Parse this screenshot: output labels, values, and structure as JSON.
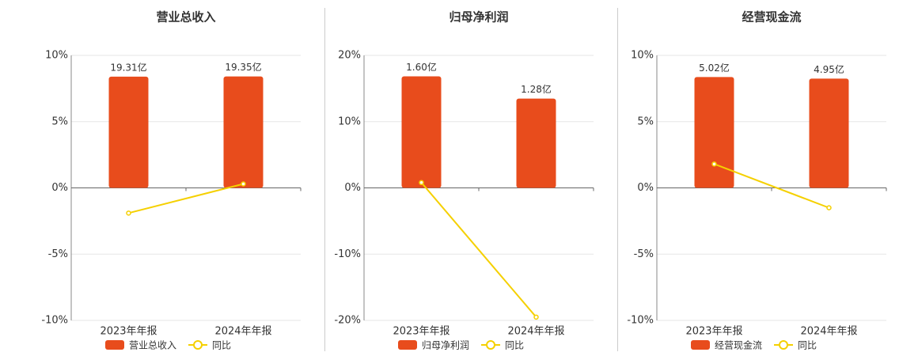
{
  "chart_data": [
    {
      "type": "bar",
      "title": "营业总收入",
      "categories": [
        "2023年年报",
        "2024年年报"
      ],
      "series": [
        {
          "name": "营业总收入",
          "color": "#e84c1c",
          "axis": "y2",
          "values": [
            19.31,
            19.35
          ],
          "value_labels": [
            "19.31亿",
            "19.35亿"
          ]
        },
        {
          "name": "同比",
          "color": "#f5d000",
          "type": "line",
          "values": [
            -1.9,
            0.3
          ]
        }
      ],
      "ylim": [
        -10,
        10
      ],
      "yticks": [
        {
          "value": -10,
          "label": "-10%"
        },
        {
          "value": -5,
          "label": "-5%"
        },
        {
          "value": 0,
          "label": "0%"
        },
        {
          "value": 5,
          "label": "5%"
        },
        {
          "value": 10,
          "label": "10%"
        }
      ],
      "y2lim": [
        -23,
        23
      ],
      "grid": true
    },
    {
      "type": "bar",
      "title": "归母净利润",
      "categories": [
        "2023年年报",
        "2024年年报"
      ],
      "series": [
        {
          "name": "归母净利润",
          "color": "#e84c1c",
          "axis": "y2",
          "values": [
            1.6,
            1.28
          ],
          "value_labels": [
            "1.60亿",
            "1.28亿"
          ]
        },
        {
          "name": "同比",
          "color": "#f5d000",
          "type": "line",
          "values": [
            0.8,
            -19.5
          ]
        }
      ],
      "ylim": [
        -20,
        20
      ],
      "yticks": [
        {
          "value": -20,
          "label": "-20%"
        },
        {
          "value": -10,
          "label": "-10%"
        },
        {
          "value": 0,
          "label": "0%"
        },
        {
          "value": 10,
          "label": "10%"
        },
        {
          "value": 20,
          "label": "20%"
        }
      ],
      "y2lim": [
        -1.9,
        1.9
      ],
      "grid": true
    },
    {
      "type": "bar",
      "title": "经营现金流",
      "categories": [
        "2023年年报",
        "2024年年报"
      ],
      "series": [
        {
          "name": "经营现金流",
          "color": "#e84c1c",
          "axis": "y2",
          "values": [
            5.02,
            4.95
          ],
          "value_labels": [
            "5.02亿",
            "4.95亿"
          ]
        },
        {
          "name": "同比",
          "color": "#f5d000",
          "type": "line",
          "values": [
            1.8,
            -1.5
          ]
        }
      ],
      "ylim": [
        -10,
        10
      ],
      "yticks": [
        {
          "value": -10,
          "label": "-10%"
        },
        {
          "value": -5,
          "label": "-5%"
        },
        {
          "value": 0,
          "label": "0%"
        },
        {
          "value": 5,
          "label": "5%"
        },
        {
          "value": 10,
          "label": "10%"
        }
      ],
      "y2lim": [
        -6,
        6
      ],
      "grid": true
    }
  ]
}
